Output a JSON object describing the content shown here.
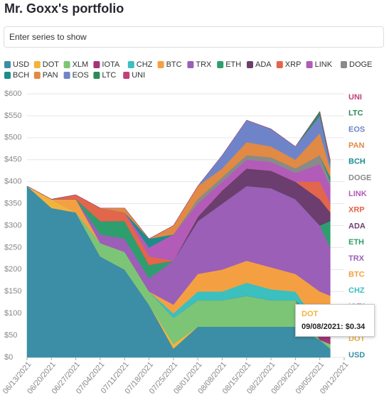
{
  "title": "Mr. Goxx's portfolio",
  "input": {
    "placeholder": "Enter series to show"
  },
  "tooltip": {
    "title": "DOT",
    "text": "09/08/2021: $0.34"
  },
  "chart_data": {
    "type": "stacked_area",
    "x": [
      "06/13/2021",
      "06/20/2021",
      "06/27/2021",
      "07/04/2021",
      "07/11/2021",
      "07/18/2021",
      "07/25/2021",
      "08/01/2021",
      "08/08/2021",
      "08/15/2021",
      "08/22/2021",
      "08/29/2021",
      "09/05/2021",
      "09/08/2021"
    ],
    "xlim": [
      "06/13/2021",
      "09/12/2021"
    ],
    "xticks": [
      "06/13/2021",
      "06/20/2021",
      "06/27/2021",
      "07/04/2021",
      "07/11/2021",
      "07/18/2021",
      "07/25/2021",
      "08/01/2021",
      "08/08/2021",
      "08/15/2021",
      "08/22/2021",
      "08/29/2021",
      "09/05/2021",
      "09/12/2021"
    ],
    "ylim": [
      0,
      600
    ],
    "yticks": [
      {
        "value": 0,
        "label": "$0"
      },
      {
        "value": 50,
        "label": "$50"
      },
      {
        "value": 100,
        "label": "$100"
      },
      {
        "value": 150,
        "label": "$150"
      },
      {
        "value": 200,
        "label": "$200"
      },
      {
        "value": 250,
        "label": "$250"
      },
      {
        "value": 300,
        "label": "$300"
      },
      {
        "value": 350,
        "label": "$350"
      },
      {
        "value": 400,
        "label": "$400"
      },
      {
        "value": 450,
        "label": "$450"
      },
      {
        "value": 500,
        "label": "$500"
      },
      {
        "value": 550,
        "label": "$550"
      },
      {
        "value": 600,
        "label": "$600"
      }
    ],
    "grid": true,
    "series": [
      {
        "name": "USD",
        "color": "#3b8ea5",
        "values": [
          390,
          340,
          330,
          230,
          200,
          120,
          20,
          70,
          70,
          70,
          70,
          70,
          40,
          20
        ]
      },
      {
        "name": "DOT",
        "color": "#f2b33d",
        "values": [
          0,
          20,
          0,
          0,
          0,
          0,
          10,
          0,
          0,
          0,
          0,
          0,
          0,
          0.34
        ]
      },
      {
        "name": "XLM",
        "color": "#7cc576",
        "values": [
          0,
          0,
          0,
          30,
          40,
          30,
          60,
          60,
          60,
          70,
          60,
          60,
          0,
          10
        ]
      },
      {
        "name": "IOTA",
        "color": "#a3347a",
        "values": [
          0,
          0,
          0,
          0,
          0,
          0,
          0,
          0,
          0,
          0,
          0,
          0,
          30,
          20
        ]
      },
      {
        "name": "CHZ",
        "color": "#3cbfbf",
        "values": [
          0,
          0,
          0,
          0,
          0,
          0,
          10,
          20,
          20,
          30,
          25,
          20,
          0,
          40
        ]
      },
      {
        "name": "BTC",
        "color": "#f4a042",
        "values": [
          0,
          0,
          30,
          0,
          0,
          0,
          20,
          40,
          50,
          50,
          50,
          40,
          80,
          50
        ]
      },
      {
        "name": "TRX",
        "color": "#9b5fb7",
        "values": [
          0,
          0,
          0,
          20,
          30,
          30,
          100,
          120,
          150,
          170,
          180,
          170,
          150,
          110
        ]
      },
      {
        "name": "ETH",
        "color": "#2f9e6f",
        "values": [
          0,
          0,
          0,
          30,
          40,
          30,
          0,
          0,
          0,
          0,
          0,
          0,
          0,
          60
        ]
      },
      {
        "name": "ADA",
        "color": "#6c3d6f",
        "values": [
          0,
          0,
          0,
          0,
          0,
          0,
          0,
          10,
          30,
          40,
          40,
          40,
          60,
          20
        ]
      },
      {
        "name": "XRP",
        "color": "#e2664b",
        "values": [
          0,
          0,
          10,
          30,
          20,
          20,
          0,
          0,
          0,
          0,
          0,
          0,
          40,
          20
        ]
      },
      {
        "name": "LINK",
        "color": "#b35bb8",
        "values": [
          0,
          0,
          0,
          0,
          0,
          20,
          60,
          30,
          20,
          20,
          20,
          20,
          40,
          40
        ]
      },
      {
        "name": "DOGE",
        "color": "#8a8a8a",
        "values": [
          0,
          0,
          0,
          0,
          0,
          0,
          0,
          10,
          10,
          10,
          10,
          10,
          20,
          10
        ]
      },
      {
        "name": "BCH",
        "color": "#1f8c8c",
        "values": [
          0,
          0,
          0,
          0,
          0,
          20,
          0,
          0,
          0,
          0,
          0,
          0,
          0,
          10
        ]
      },
      {
        "name": "PAN",
        "color": "#e08a45",
        "values": [
          0,
          0,
          0,
          0,
          10,
          0,
          20,
          30,
          20,
          30,
          25,
          20,
          50,
          20
        ]
      },
      {
        "name": "EOS",
        "color": "#6f84c8",
        "values": [
          0,
          0,
          0,
          0,
          0,
          0,
          0,
          0,
          30,
          50,
          40,
          30,
          40,
          10
        ]
      },
      {
        "name": "LTC",
        "color": "#2e8a5a",
        "values": [
          0,
          0,
          0,
          0,
          0,
          0,
          0,
          0,
          0,
          0,
          0,
          0,
          10,
          5
        ]
      },
      {
        "name": "UNI",
        "color": "#c2407a",
        "values": [
          0,
          0,
          0,
          0,
          0,
          0,
          0,
          0,
          0,
          0,
          0,
          0,
          0,
          5
        ]
      }
    ]
  }
}
